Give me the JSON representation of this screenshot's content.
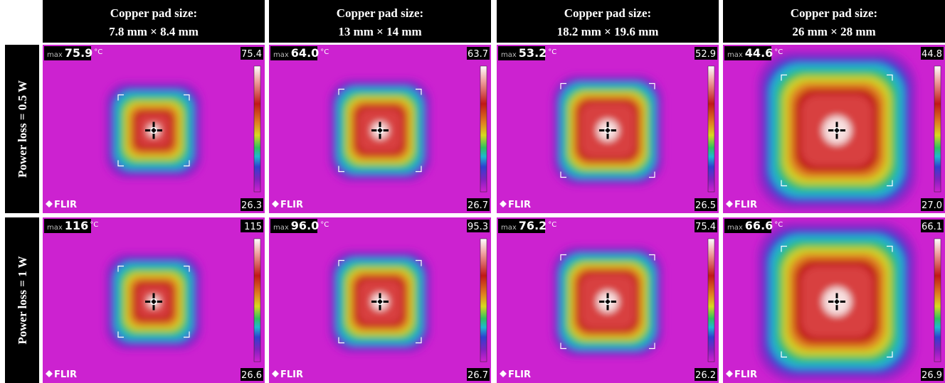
{
  "columns": [
    {
      "line1": "Copper pad size:",
      "line2": "7.8 mm × 8.4 mm"
    },
    {
      "line1": "Copper pad size:",
      "line2": "13 mm × 14 mm"
    },
    {
      "line1": "Copper pad size:",
      "line2": "18.2 mm × 19.6 mm"
    },
    {
      "line1": "Copper pad size:",
      "line2": "26 mm × 28 mm"
    }
  ],
  "rows": [
    "Power loss = 0.5 W",
    "Power loss = 1 W"
  ],
  "images": [
    [
      {
        "max": "75.9",
        "scale_max": "75.4",
        "scale_min": "26.3"
      },
      {
        "max": "64.0",
        "scale_max": "63.7",
        "scale_min": "26.7"
      },
      {
        "max": "53.2",
        "scale_max": "52.9",
        "scale_min": "26.5"
      },
      {
        "max": "44.6",
        "scale_max": "44.8",
        "scale_min": "27.0"
      }
    ],
    [
      {
        "max": "116",
        "scale_max": "115",
        "scale_min": "26.6"
      },
      {
        "max": "96.0",
        "scale_max": "95.3",
        "scale_min": "26.7"
      },
      {
        "max": "76.2",
        "scale_max": "75.4",
        "scale_min": "26.2"
      },
      {
        "max": "66.6",
        "scale_max": "66.1",
        "scale_min": "26.9"
      }
    ]
  ],
  "max_label": "max",
  "unit": "°C",
  "brand": "FLIR"
}
